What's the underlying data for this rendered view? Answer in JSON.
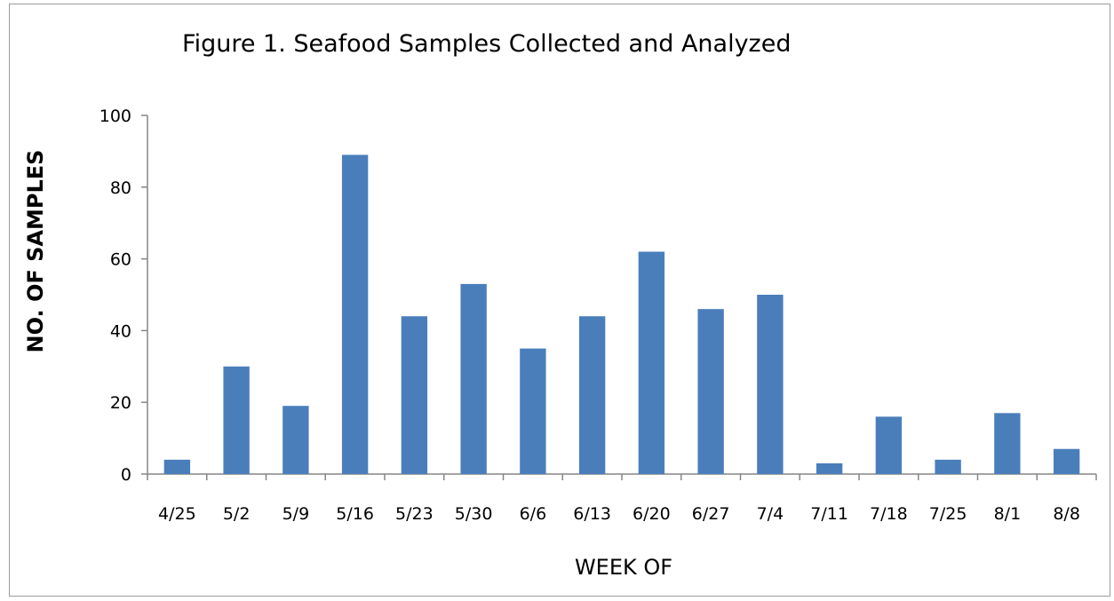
{
  "chart_data": {
    "type": "bar",
    "title": "Figure 1. Seafood Samples Collected and Analyzed",
    "xlabel": "WEEK OF",
    "ylabel": "NO. OF SAMPLES",
    "categories": [
      "4/25",
      "5/2",
      "5/9",
      "5/16",
      "5/23",
      "5/30",
      "6/6",
      "6/13",
      "6/20",
      "6/27",
      "7/4",
      "7/11",
      "7/18",
      "7/25",
      "8/1",
      "8/8"
    ],
    "values": [
      4,
      30,
      19,
      89,
      44,
      53,
      35,
      44,
      62,
      46,
      50,
      3,
      16,
      4,
      17,
      7
    ],
    "ylim": [
      0,
      100
    ],
    "yticks": [
      0,
      20,
      40,
      60,
      80,
      100
    ],
    "grid": false,
    "legend": "none",
    "bar_color": "#4a7ebb"
  }
}
